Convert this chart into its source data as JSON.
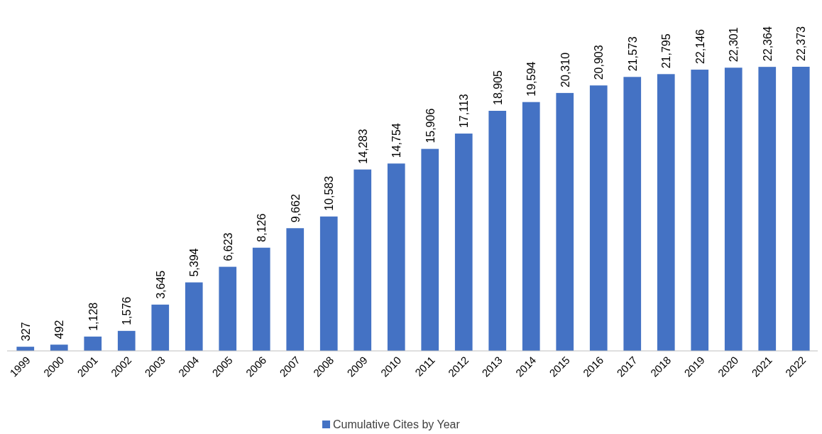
{
  "chart_data": {
    "type": "bar",
    "categories": [
      "1999",
      "2000",
      "2001",
      "2002",
      "2003",
      "2004",
      "2005",
      "2006",
      "2007",
      "2008",
      "2009",
      "2010",
      "2011",
      "2012",
      "2013",
      "2014",
      "2015",
      "2016",
      "2017",
      "2018",
      "2019",
      "2020",
      "2021",
      "2022"
    ],
    "series": [
      {
        "name": "Cumulative Cites by Year",
        "color": "#4472c4",
        "values": [
          327,
          492,
          1128,
          1576,
          3645,
          5394,
          6623,
          8126,
          9662,
          10583,
          14283,
          14754,
          15906,
          17113,
          18905,
          19594,
          20310,
          20903,
          21573,
          21795,
          22146,
          22301,
          22364,
          22373
        ],
        "value_labels": [
          "327",
          "492",
          "1,128",
          "1,576",
          "3,645",
          "5,394",
          "6,623",
          "8,126",
          "9,662",
          "10,583",
          "14,283",
          "14,754",
          "15,906",
          "17,113",
          "18,905",
          "19,594",
          "20,310",
          "20,903",
          "21,573",
          "21,795",
          "22,146",
          "22,301",
          "22,364",
          "22,373"
        ]
      }
    ],
    "legend": "bottom"
  }
}
